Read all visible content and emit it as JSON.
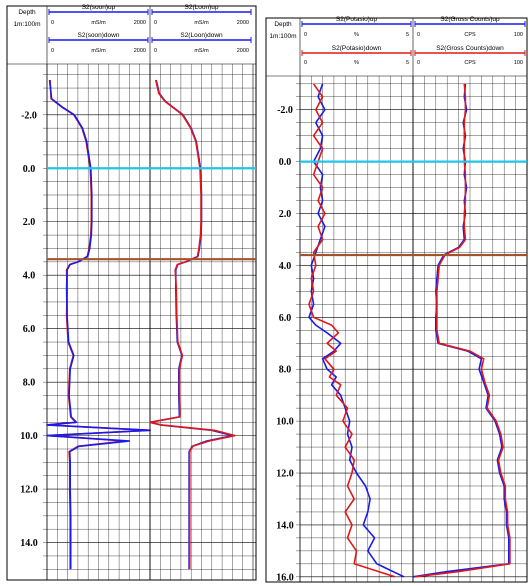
{
  "colors": {
    "up_curve": "#1a1aee",
    "down_curve": "#e01818",
    "marker_zero": "#22c4e8",
    "marker_brown": "#a0522d"
  },
  "chart_data": [
    {
      "type": "line",
      "panel": "left",
      "depth_header": "Depth",
      "scale_header": "1m:100m",
      "yaxis_depth_labels": [
        "-2.0",
        "0.0",
        "2.0",
        "4.0",
        "6.0",
        "8.0",
        "10.0",
        "12.0",
        "14.0"
      ],
      "ylim": [
        -3.9,
        15.4
      ],
      "markers": [
        {
          "depth": 0.0,
          "color": "marker_zero"
        },
        {
          "depth": 3.4,
          "color": "marker_brown"
        }
      ],
      "tracks": [
        {
          "headers": [
            {
              "name": "S2(soon)up",
              "unit": "mS/m",
              "min": "0",
              "max": "2000",
              "color": "up_curve"
            },
            {
              "name": "S2(soon)down",
              "unit": "mS/m",
              "min": "0",
              "max": "2000",
              "color": "up_curve"
            }
          ],
          "xlim": [
            0,
            2000
          ],
          "series": [
            {
              "style": "down_curve",
              "depth": [
                -3.3,
                -2.6,
                -2.3,
                -2.0,
                -1.5,
                -1.0,
                -0.5,
                0.0,
                0.5,
                1.0,
                1.5,
                2.0,
                2.5,
                3.0,
                3.3,
                3.5,
                3.6,
                3.8,
                4.5,
                5.5,
                6.5,
                7.0,
                7.5,
                8.5,
                9.3,
                9.5,
                9.6,
                9.8,
                10.0,
                10.2,
                10.4,
                10.6,
                11.0,
                12.0,
                13.0,
                14.0,
                15.0
              ],
              "value": [
                60,
                80,
                280,
                520,
                680,
                760,
                800,
                840,
                850,
                860,
                860,
                860,
                850,
                820,
                780,
                600,
                440,
                380,
                390,
                380,
                410,
                510,
                440,
                420,
                460,
                560,
                0,
                2000,
                0,
                1500,
                600,
                430,
                440,
                440,
                450,
                450,
                450
              ]
            },
            {
              "style": "up_curve",
              "depth": [
                -3.3,
                -2.6,
                -2.3,
                -2.0,
                -1.5,
                -1.0,
                -0.5,
                0.0,
                0.5,
                1.0,
                1.5,
                2.0,
                2.5,
                3.0,
                3.3,
                3.5,
                3.6,
                3.8,
                4.5,
                5.5,
                6.5,
                7.0,
                7.5,
                8.5,
                9.3,
                9.5,
                9.6,
                9.8,
                10.0,
                10.2,
                10.4,
                10.6,
                11.0,
                12.0,
                13.0,
                14.0,
                15.0
              ],
              "value": [
                50,
                90,
                290,
                530,
                690,
                770,
                810,
                850,
                860,
                870,
                870,
                870,
                860,
                830,
                790,
                610,
                450,
                390,
                380,
                390,
                420,
                520,
                450,
                430,
                470,
                570,
                0,
                2000,
                0,
                1600,
                620,
                440,
                450,
                450,
                460,
                460,
                460
              ]
            }
          ]
        },
        {
          "headers": [
            {
              "name": "S2(Loon)up",
              "unit": "mS/m",
              "min": "0",
              "max": "2000",
              "color": "up_curve"
            },
            {
              "name": "S2(Loon)down",
              "unit": "mS/m",
              "min": "0",
              "max": "2000",
              "color": "up_curve"
            }
          ],
          "xlim": [
            0,
            2000
          ],
          "series": [
            {
              "style": "up_curve",
              "depth": [
                -3.3,
                -2.8,
                -2.5,
                -2.0,
                -1.5,
                -1.0,
                -0.5,
                0.0,
                0.5,
                1.0,
                1.5,
                2.0,
                2.5,
                3.0,
                3.3,
                3.5,
                3.6,
                3.8,
                4.5,
                5.5,
                6.5,
                7.0,
                7.5,
                8.5,
                9.3,
                9.5,
                9.6,
                9.8,
                10.0,
                10.2,
                10.4,
                10.6,
                11.0,
                12.0,
                13.0,
                14.0,
                15.0
              ],
              "value": [
                120,
                180,
                300,
                640,
                800,
                900,
                940,
                980,
                990,
                1000,
                1000,
                1000,
                990,
                960,
                930,
                700,
                540,
                500,
                500,
                510,
                530,
                620,
                560,
                560,
                570,
                0,
                200,
                1200,
                1600,
                1100,
                820,
                760,
                760,
                760,
                760,
                760,
                760
              ]
            },
            {
              "style": "down_curve",
              "depth": [
                -3.3,
                -2.8,
                -2.5,
                -2.0,
                -1.5,
                -1.0,
                -0.5,
                0.0,
                0.5,
                1.0,
                1.5,
                2.0,
                2.5,
                3.0,
                3.3,
                3.5,
                3.6,
                3.8,
                4.5,
                5.5,
                6.5,
                7.0,
                7.5,
                8.5,
                9.3,
                9.5,
                9.6,
                9.8,
                10.0,
                10.2,
                10.4,
                10.6,
                11.0,
                12.0,
                13.0,
                14.0,
                15.0
              ],
              "value": [
                110,
                170,
                290,
                630,
                790,
                890,
                930,
                970,
                980,
                990,
                990,
                990,
                980,
                950,
                920,
                690,
                530,
                490,
                510,
                520,
                540,
                630,
                570,
                570,
                580,
                0,
                220,
                1250,
                1650,
                1150,
                830,
                770,
                770,
                770,
                770,
                770,
                770
              ]
            }
          ]
        }
      ]
    },
    {
      "type": "line",
      "panel": "right",
      "depth_header": "Depth",
      "scale_header": "1m:100m",
      "yaxis_depth_labels": [
        "-2.0",
        "0.0",
        "2.0",
        "4.0",
        "6.0",
        "8.0",
        "10.0",
        "12.0",
        "14.0",
        "16.0"
      ],
      "ylim": [
        -3.3,
        16.2
      ],
      "markers": [
        {
          "depth": 0.0,
          "color": "marker_zero"
        },
        {
          "depth": 3.6,
          "color": "marker_brown"
        }
      ],
      "tracks": [
        {
          "headers": [
            {
              "name": "S2(Potasio)up",
              "unit": "%",
              "min": "0",
              "max": "5",
              "color": "up_curve"
            },
            {
              "name": "S2(Potasio)down",
              "unit": "%",
              "min": "0",
              "max": "5",
              "color": "down_curve"
            }
          ],
          "xlim": [
            0,
            5
          ],
          "series": [
            {
              "style": "up_curve",
              "depth": [
                -3.0,
                -2.5,
                -2.0,
                -1.5,
                -1.0,
                -0.5,
                0.0,
                0.5,
                1.0,
                1.5,
                2.0,
                2.5,
                3.0,
                3.5,
                4.0,
                4.5,
                5.0,
                5.5,
                6.0,
                6.3,
                6.6,
                7.0,
                7.3,
                7.6,
                8.0,
                8.3,
                8.6,
                9.0,
                9.5,
                10.0,
                10.5,
                11.0,
                11.5,
                12.0,
                12.5,
                13.0,
                13.5,
                14.0,
                14.5,
                15.0,
                15.5,
                16.0
              ],
              "value": [
                1.0,
                0.8,
                1.1,
                0.7,
                1.0,
                0.9,
                0.6,
                1.0,
                0.9,
                1.0,
                0.8,
                1.1,
                0.9,
                0.7,
                0.5,
                0.6,
                0.5,
                0.6,
                0.4,
                0.7,
                1.2,
                1.8,
                1.5,
                1.0,
                1.2,
                1.6,
                1.4,
                1.8,
                2.0,
                2.2,
                2.1,
                2.3,
                2.2,
                2.5,
                2.9,
                3.1,
                3.0,
                2.8,
                3.3,
                3.0,
                3.4,
                4.6
              ]
            },
            {
              "style": "down_curve",
              "depth": [
                -3.0,
                -2.5,
                -2.0,
                -1.5,
                -1.0,
                -0.5,
                0.0,
                0.5,
                1.0,
                1.5,
                2.0,
                2.5,
                3.0,
                3.5,
                4.0,
                4.5,
                5.0,
                5.5,
                6.0,
                6.3,
                6.6,
                7.0,
                7.3,
                7.6,
                8.0,
                8.3,
                8.6,
                9.0,
                9.5,
                10.0,
                10.5,
                11.0,
                11.5,
                12.0,
                12.5,
                13.0,
                13.5,
                14.0,
                14.5,
                15.0,
                15.5,
                16.0
              ],
              "value": [
                0.6,
                1.0,
                0.7,
                1.0,
                0.6,
                1.0,
                0.8,
                0.6,
                1.0,
                0.8,
                1.1,
                0.8,
                1.0,
                0.6,
                0.7,
                0.5,
                0.6,
                0.4,
                0.6,
                1.4,
                1.7,
                1.2,
                1.6,
                1.1,
                1.5,
                1.3,
                1.8,
                1.6,
                2.1,
                1.9,
                2.3,
                2.0,
                2.4,
                2.3,
                2.1,
                2.4,
                2.0,
                2.3,
                2.1,
                2.5,
                2.4,
                4.2
              ]
            }
          ]
        },
        {
          "headers": [
            {
              "name": "S2(Gross Counts)up",
              "unit": "CPS",
              "min": "0",
              "max": "100",
              "color": "up_curve"
            },
            {
              "name": "S2(Gross Counts)down",
              "unit": "CPS",
              "min": "0",
              "max": "100",
              "color": "down_curve"
            }
          ],
          "xlim": [
            0,
            100
          ],
          "series": [
            {
              "style": "up_curve",
              "depth": [
                -3.0,
                -2.5,
                -2.0,
                -1.5,
                -1.0,
                -0.5,
                0.0,
                0.5,
                1.0,
                1.5,
                2.0,
                2.5,
                3.0,
                3.3,
                3.6,
                4.0,
                4.5,
                5.0,
                5.5,
                6.0,
                6.5,
                7.0,
                7.3,
                7.6,
                8.0,
                8.5,
                9.0,
                9.5,
                10.0,
                10.5,
                11.0,
                11.5,
                12.0,
                12.5,
                13.0,
                13.5,
                14.0,
                14.5,
                15.0,
                15.5,
                15.8,
                16.0
              ],
              "value": [
                46,
                45,
                47,
                44,
                46,
                44,
                46,
                45,
                47,
                45,
                46,
                44,
                45,
                40,
                27,
                22,
                21,
                20,
                21,
                20,
                20,
                22,
                48,
                60,
                58,
                62,
                66,
                64,
                72,
                76,
                78,
                74,
                76,
                80,
                80,
                82,
                82,
                84,
                84,
                84,
                30,
                0
              ]
            },
            {
              "style": "down_curve",
              "depth": [
                -3.0,
                -2.5,
                -2.0,
                -1.5,
                -1.0,
                -0.5,
                0.0,
                0.5,
                1.0,
                1.5,
                2.0,
                2.5,
                3.0,
                3.3,
                3.6,
                4.0,
                4.5,
                5.0,
                5.5,
                6.0,
                6.5,
                7.0,
                7.3,
                7.6,
                8.0,
                8.5,
                9.0,
                9.5,
                10.0,
                10.5,
                11.0,
                11.5,
                12.0,
                12.5,
                13.0,
                13.5,
                14.0,
                14.5,
                15.0,
                15.5,
                15.8,
                16.0
              ],
              "value": [
                45,
                46,
                46,
                45,
                45,
                45,
                45,
                46,
                46,
                46,
                45,
                45,
                46,
                41,
                28,
                23,
                22,
                21,
                21,
                21,
                21,
                23,
                50,
                62,
                60,
                63,
                67,
                65,
                73,
                77,
                79,
                75,
                77,
                81,
                81,
                83,
                83,
                85,
                85,
                85,
                40,
                2
              ]
            }
          ]
        }
      ]
    }
  ]
}
